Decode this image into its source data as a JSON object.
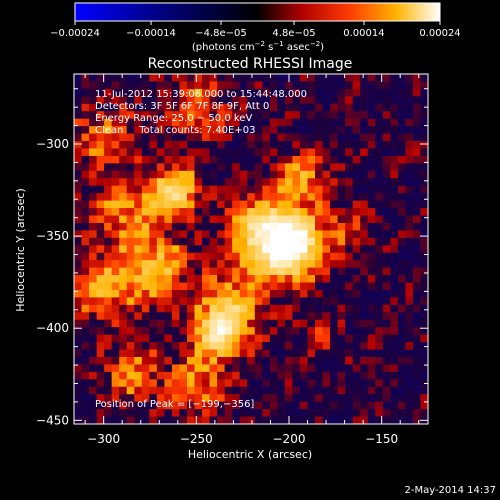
{
  "chart_data": {
    "type": "heatmap",
    "title": "Reconstructed RHESSI Image",
    "xlabel": "Heliocentric X (arcsec)",
    "ylabel": "Heliocentric Y (arcsec)",
    "xlim": [
      -316,
      -125
    ],
    "ylim": [
      -452,
      -262
    ],
    "x_ticks": [
      -300,
      -250,
      -200,
      -150
    ],
    "y_ticks": [
      -300,
      -350,
      -400,
      -450
    ],
    "x_tick_labels": [
      "−300",
      "−250",
      "−200",
      "−150"
    ],
    "y_tick_labels": [
      "−300",
      "−350",
      "−400",
      "−450"
    ],
    "colorbar": {
      "range": [
        -0.00024,
        0.00024
      ],
      "ticks": [
        -0.00024,
        -0.00014,
        -4.8e-05,
        4.8e-05,
        0.00014,
        0.00024
      ],
      "tick_labels": [
        "−0.00024",
        "−0.00014",
        "−4.8e−05",
        "4.8e−05",
        "0.00014",
        "0.00024"
      ],
      "unit_parts": [
        "(photons cm",
        "−2",
        " s",
        "−1",
        " asec",
        "−2",
        ")"
      ]
    },
    "annotations": [
      "11-Jul-2012 15:39:06.000 to 15:44:48.000",
      "Detectors: 3F 5F 6F 7F 8F 9F, Att 0",
      "Energy Range: 25.0 − 50.0 keV",
      "Clean     Total counts: 7.40E+03"
    ],
    "peak_label": "Position of Peak = [−199,−356]",
    "peak": [
      -199,
      -356
    ],
    "sources": [
      {
        "x": -199,
        "y": -356,
        "peak": 0.00024,
        "sigma": 11
      },
      {
        "x": -213,
        "y": -348,
        "peak": 0.00016,
        "sigma": 14
      },
      {
        "x": -238,
        "y": -402,
        "peak": 0.00017,
        "sigma": 10
      },
      {
        "x": -230,
        "y": -386,
        "peak": 0.0001,
        "sigma": 12
      },
      {
        "x": -262,
        "y": -325,
        "peak": 0.00016,
        "sigma": 9
      },
      {
        "x": -287,
        "y": -338,
        "peak": 9e-05,
        "sigma": 14
      },
      {
        "x": -272,
        "y": -368,
        "peak": 0.00012,
        "sigma": 12
      },
      {
        "x": -300,
        "y": -295,
        "peak": 8e-05,
        "sigma": 12
      },
      {
        "x": -300,
        "y": -378,
        "peak": 0.0001,
        "sigma": 12
      },
      {
        "x": -250,
        "y": -280,
        "peak": 8e-05,
        "sigma": 11
      },
      {
        "x": -193,
        "y": -318,
        "peak": 0.00011,
        "sigma": 9
      },
      {
        "x": -170,
        "y": -345,
        "peak": 6e-05,
        "sigma": 9
      },
      {
        "x": -285,
        "y": -425,
        "peak": 8e-05,
        "sigma": 11
      },
      {
        "x": -250,
        "y": -430,
        "peak": 9e-05,
        "sigma": 11
      },
      {
        "x": -185,
        "y": -405,
        "peak": 4e-05,
        "sigma": 9
      }
    ]
  },
  "footer": {
    "date": "2-May-2014 14:37"
  }
}
